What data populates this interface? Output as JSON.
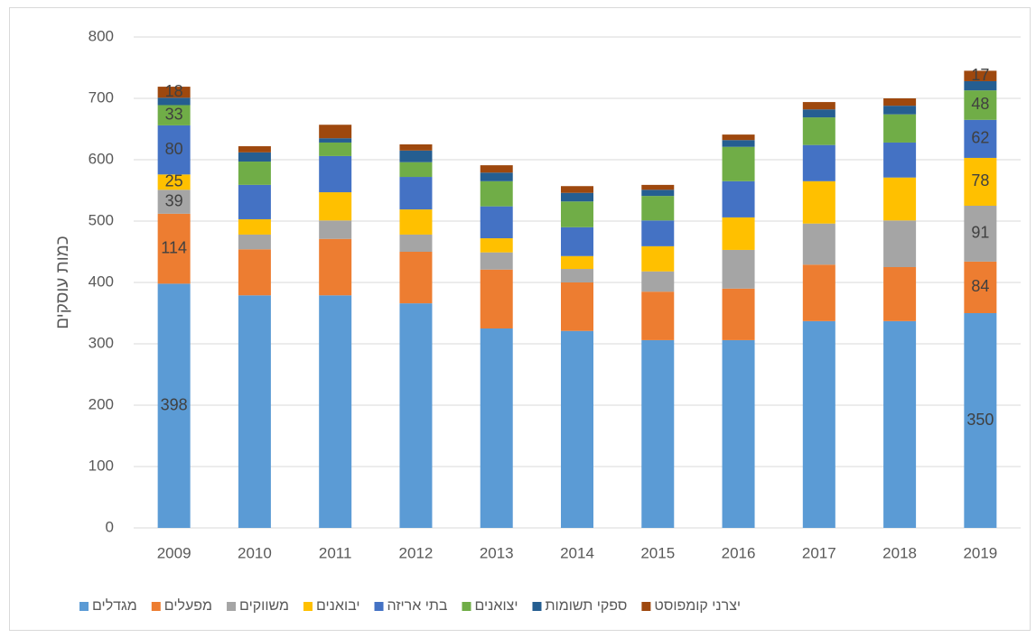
{
  "chart_data": {
    "type": "bar",
    "stacked": true,
    "y_label": "כמות עוסקים",
    "categories": [
      "2009",
      "2010",
      "2011",
      "2012",
      "2013",
      "2014",
      "2015",
      "2016",
      "2017",
      "2018",
      "2019"
    ],
    "ylim": [
      0,
      800
    ],
    "yticks": [
      0,
      100,
      200,
      300,
      400,
      500,
      600,
      700,
      800
    ],
    "grid": true,
    "legend": "bottom",
    "series": [
      {
        "name": "מגדלים",
        "color": "#5b9bd5",
        "values": [
          398,
          379,
          379,
          366,
          325,
          321,
          306,
          306,
          337,
          337,
          350
        ],
        "value_labels": [
          "398",
          null,
          null,
          null,
          null,
          null,
          null,
          null,
          null,
          null,
          "350"
        ]
      },
      {
        "name": "מפעלים",
        "color": "#ed7d31",
        "values": [
          114,
          75,
          92,
          84,
          96,
          79,
          79,
          84,
          92,
          88,
          84
        ],
        "value_labels": [
          "114",
          null,
          null,
          null,
          null,
          null,
          null,
          null,
          null,
          null,
          "84"
        ]
      },
      {
        "name": "משווקים",
        "color": "#a5a5a5",
        "values": [
          39,
          24,
          30,
          28,
          28,
          22,
          33,
          63,
          67,
          76,
          91
        ],
        "value_labels": [
          "39",
          null,
          null,
          null,
          null,
          null,
          null,
          null,
          null,
          null,
          "91"
        ]
      },
      {
        "name": "יבואנים",
        "color": "#ffc000",
        "values": [
          25,
          25,
          46,
          41,
          23,
          21,
          41,
          53,
          69,
          70,
          78
        ],
        "value_labels": [
          "25",
          null,
          null,
          null,
          null,
          null,
          null,
          null,
          null,
          null,
          "78"
        ]
      },
      {
        "name": "בתי אריזה",
        "color": "#4472c4",
        "values": [
          80,
          56,
          59,
          53,
          52,
          47,
          42,
          59,
          59,
          57,
          62
        ],
        "value_labels": [
          "80",
          null,
          null,
          null,
          null,
          null,
          null,
          null,
          null,
          null,
          "62"
        ]
      },
      {
        "name": "יצואנים",
        "color": "#70ad47",
        "values": [
          33,
          38,
          22,
          24,
          41,
          42,
          40,
          56,
          45,
          46,
          48
        ],
        "value_labels": [
          "33",
          null,
          null,
          null,
          null,
          null,
          null,
          null,
          null,
          null,
          "48"
        ]
      },
      {
        "name": "ספקי תשומות",
        "color": "#255e91",
        "values": [
          12,
          15,
          7,
          19,
          14,
          14,
          10,
          11,
          13,
          14,
          15
        ]
      },
      {
        "name": "יצרני קומפוסט",
        "color": "#9e480e",
        "values": [
          18,
          10,
          22,
          10,
          12,
          11,
          8,
          9,
          12,
          12,
          17
        ],
        "value_labels": [
          "18",
          null,
          null,
          null,
          null,
          null,
          null,
          null,
          null,
          null,
          "17"
        ]
      }
    ]
  }
}
